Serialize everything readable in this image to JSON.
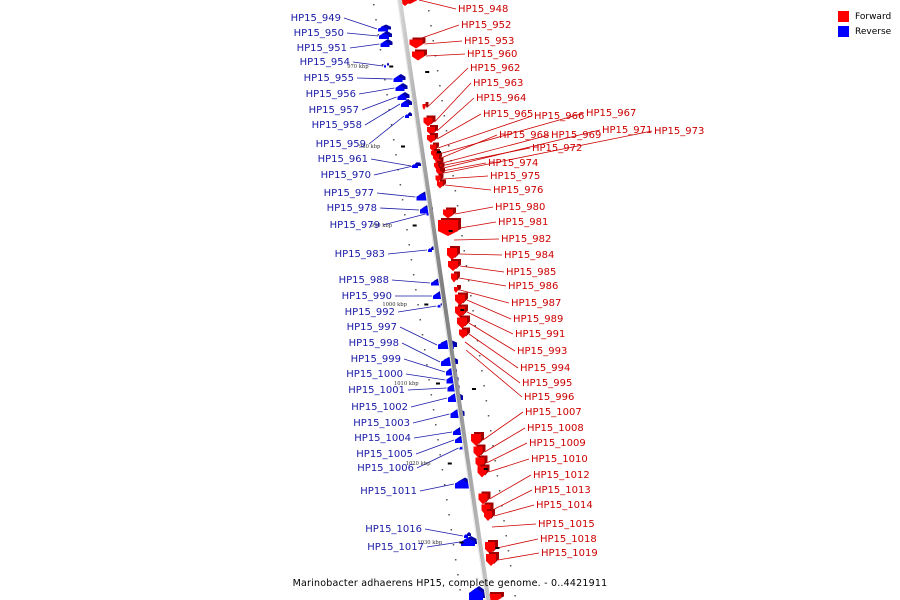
{
  "title": "Marinobacter adhaerens HP15, complete genome. - 0..4421911",
  "legend": {
    "forward_label": "Forward",
    "reverse_label": "Reverse",
    "forward_color": "#ff0000",
    "reverse_color": "#0000ff"
  },
  "colors": {
    "forward_label": "#cc0000",
    "reverse_label": "#1a1aa6",
    "axis": "#888888"
  },
  "axis_ticks": [
    {
      "label": "970 kbp",
      "kbp": 970
    },
    {
      "label": "980 kbp",
      "kbp": 980
    },
    {
      "label": "990 kbp",
      "kbp": 990
    },
    {
      "label": "1000 kbp",
      "kbp": 1000
    },
    {
      "label": "1010 kbp",
      "kbp": 1010
    },
    {
      "label": "1020 kbp",
      "kbp": 1020
    },
    {
      "label": "1030 kbp",
      "kbp": 1030
    }
  ],
  "reverse_genes": [
    {
      "label": "HP15_949"
    },
    {
      "label": "HP15_950"
    },
    {
      "label": "HP15_951"
    },
    {
      "label": "HP15_954"
    },
    {
      "label": "HP15_955"
    },
    {
      "label": "HP15_956"
    },
    {
      "label": "HP15_957"
    },
    {
      "label": "HP15_958"
    },
    {
      "label": "HP15_959"
    },
    {
      "label": "HP15_961"
    },
    {
      "label": "HP15_970"
    },
    {
      "label": "HP15_977"
    },
    {
      "label": "HP15_978"
    },
    {
      "label": "HP15_979"
    },
    {
      "label": "HP15_983"
    },
    {
      "label": "HP15_988"
    },
    {
      "label": "HP15_990"
    },
    {
      "label": "HP15_992"
    },
    {
      "label": "HP15_997"
    },
    {
      "label": "HP15_998"
    },
    {
      "label": "HP15_999"
    },
    {
      "label": "HP15_1000"
    },
    {
      "label": "HP15_1001"
    },
    {
      "label": "HP15_1002"
    },
    {
      "label": "HP15_1003"
    },
    {
      "label": "HP15_1004"
    },
    {
      "label": "HP15_1005"
    },
    {
      "label": "HP15_1006"
    },
    {
      "label": "HP15_1011"
    },
    {
      "label": "HP15_1016"
    },
    {
      "label": "HP15_1017"
    }
  ],
  "forward_genes": [
    {
      "label": "HP15_948"
    },
    {
      "label": "HP15_952"
    },
    {
      "label": "HP15_953"
    },
    {
      "label": "HP15_960"
    },
    {
      "label": "HP15_962"
    },
    {
      "label": "HP15_963"
    },
    {
      "label": "HP15_964"
    },
    {
      "label": "HP15_965"
    },
    {
      "label": "HP15_966"
    },
    {
      "label": "HP15_967"
    },
    {
      "label": "HP15_968"
    },
    {
      "label": "HP15_969"
    },
    {
      "label": "HP15_971"
    },
    {
      "label": "HP15_973"
    },
    {
      "label": "HP15_972"
    },
    {
      "label": "HP15_974"
    },
    {
      "label": "HP15_975"
    },
    {
      "label": "HP15_976"
    },
    {
      "label": "HP15_980"
    },
    {
      "label": "HP15_981"
    },
    {
      "label": "HP15_982"
    },
    {
      "label": "HP15_984"
    },
    {
      "label": "HP15_985"
    },
    {
      "label": "HP15_986"
    },
    {
      "label": "HP15_987"
    },
    {
      "label": "HP15_989"
    },
    {
      "label": "HP15_991"
    },
    {
      "label": "HP15_993"
    },
    {
      "label": "HP15_994"
    },
    {
      "label": "HP15_995"
    },
    {
      "label": "HP15_996"
    },
    {
      "label": "HP15_1007"
    },
    {
      "label": "HP15_1008"
    },
    {
      "label": "HP15_1009"
    },
    {
      "label": "HP15_1010"
    },
    {
      "label": "HP15_1012"
    },
    {
      "label": "HP15_1013"
    },
    {
      "label": "HP15_1014"
    },
    {
      "label": "HP15_1015"
    },
    {
      "label": "HP15_1018"
    },
    {
      "label": "HP15_1019"
    }
  ]
}
